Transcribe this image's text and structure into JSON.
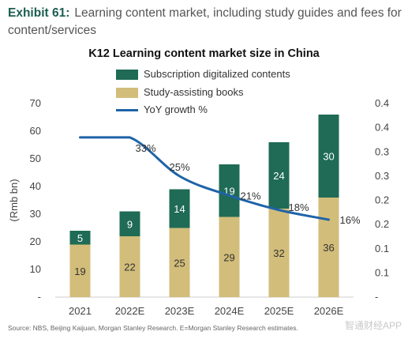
{
  "header": {
    "exhibit_label": "Exhibit 61:",
    "exhibit_text": "Learning content market, including study guides and fees for content/services"
  },
  "footer": {
    "source": "Source: NBS, Beijing Kaijuan, Morgan Stanley Research. E=Morgan Stanley Research estimates.",
    "watermark": "智通财经APP"
  },
  "colors": {
    "subscription": "#1f6b55",
    "study_books": "#d2bd7a",
    "yoy_line": "#1e63a8",
    "axis_text": "#444444",
    "exhibit_label": "#1c5e52"
  },
  "chart_data": {
    "type": "bar",
    "stacked": true,
    "title": "K12 Learning content market size in China",
    "categories": [
      "2021",
      "2022E",
      "2023E",
      "2024E",
      "2025E",
      "2026E"
    ],
    "series": [
      {
        "name": "Study-assisting books",
        "values": [
          19,
          22,
          25,
          29,
          32,
          36
        ],
        "labels": [
          "19",
          "22",
          "25",
          "29",
          "32",
          "36"
        ]
      },
      {
        "name": "Subscription digitalized contents",
        "values": [
          5,
          9,
          14,
          19,
          24,
          30
        ],
        "labels": [
          "5",
          "9",
          "14",
          "19",
          "24",
          "30"
        ]
      }
    ],
    "line_series": {
      "name": "YoY growth %",
      "axis": "right",
      "points": [
        {
          "category": "2022E",
          "value": 0.33,
          "label": "33%"
        },
        {
          "category": "2023E",
          "value": 0.25,
          "label": "25%"
        },
        {
          "category": "2024E",
          "value": 0.21,
          "label": "21%"
        },
        {
          "category": "2025E",
          "value": 0.18,
          "label": "18%"
        },
        {
          "category": "2026E",
          "value": 0.16,
          "label": "16%"
        }
      ],
      "line_start_category": "2021"
    },
    "ylabel": "(Rmb bn)",
    "ylim": [
      0,
      70
    ],
    "yticks": [
      {
        "value": 0,
        "label": "-"
      },
      {
        "value": 10,
        "label": "10"
      },
      {
        "value": 20,
        "label": "20"
      },
      {
        "value": 30,
        "label": "30"
      },
      {
        "value": 40,
        "label": "40"
      },
      {
        "value": 50,
        "label": "50"
      },
      {
        "value": 60,
        "label": "60"
      },
      {
        "value": 70,
        "label": "70"
      }
    ],
    "y2lim": [
      0,
      0.4
    ],
    "y2ticks": [
      {
        "value": 0,
        "label": "-"
      },
      {
        "value": 0.05,
        "label": "0.1"
      },
      {
        "value": 0.1,
        "label": "0.1"
      },
      {
        "value": 0.15,
        "label": "0.2"
      },
      {
        "value": 0.2,
        "label": "0.2"
      },
      {
        "value": 0.25,
        "label": "0.3"
      },
      {
        "value": 0.3,
        "label": "0.3"
      },
      {
        "value": 0.35,
        "label": "0.4"
      },
      {
        "value": 0.4,
        "label": "0.4"
      }
    ],
    "grid": false,
    "legend": "top"
  }
}
